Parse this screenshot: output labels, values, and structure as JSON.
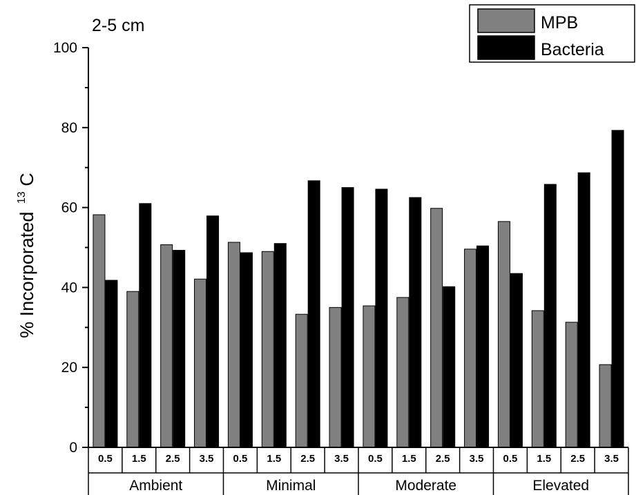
{
  "chart_data": {
    "type": "bar",
    "title": "2-5 cm",
    "ylabel": "% Incorporated",
    "ylabel_sup": "13",
    "ylabel_suffix": "C",
    "ylim": [
      0,
      100
    ],
    "yticks": [
      0,
      20,
      40,
      60,
      80,
      100
    ],
    "groups": [
      "Ambient",
      "Minimal",
      "Moderate",
      "Elevated"
    ],
    "subcategories": [
      "0.5",
      "1.5",
      "2.5",
      "3.5"
    ],
    "legend_position": "top-right",
    "series": [
      {
        "name": "MPB",
        "color": "#808080",
        "values": [
          58.2,
          39.0,
          50.7,
          42.1,
          51.3,
          49.0,
          33.3,
          35.0,
          35.4,
          37.5,
          59.8,
          49.6,
          56.5,
          34.2,
          31.3,
          20.7
        ]
      },
      {
        "name": "Bacteria",
        "color": "#000000",
        "values": [
          41.8,
          61.0,
          49.3,
          57.9,
          48.7,
          51.0,
          66.7,
          65.0,
          64.6,
          62.5,
          40.2,
          50.4,
          43.5,
          65.8,
          68.7,
          79.3
        ]
      }
    ]
  }
}
